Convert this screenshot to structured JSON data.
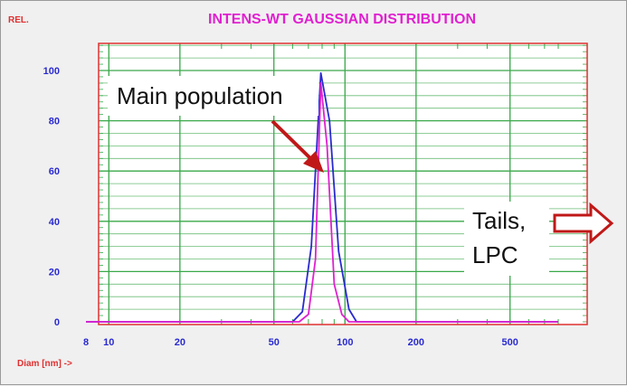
{
  "chart_data": {
    "type": "line",
    "title": "INTENS-WT GAUSSIAN DISTRIBUTION",
    "ylabel": "REL.",
    "xlabel": "Diam [nm] ->",
    "x_scale": "log",
    "xlim": [
      8,
      800
    ],
    "ylim": [
      0,
      100
    ],
    "x_ticks": [
      "8",
      "10",
      "20",
      "50",
      "100",
      "200",
      "500"
    ],
    "y_ticks": [
      "0",
      "20",
      "40",
      "60",
      "80",
      "100"
    ],
    "grid": true,
    "series": [
      {
        "color": "#2a2ad0",
        "x": [
          8,
          60,
          66,
          72,
          79,
          86,
          94,
          104,
          112,
          800
        ],
        "y": [
          0,
          0,
          4,
          30,
          99,
          80,
          28,
          5,
          0,
          0
        ]
      },
      {
        "color": "#e020d0",
        "x": [
          8,
          64,
          70,
          75,
          79,
          84,
          90,
          97,
          104,
          800
        ],
        "y": [
          0,
          0,
          3,
          25,
          95,
          70,
          15,
          3,
          0,
          0
        ]
      }
    ],
    "annotations": [
      {
        "text": "Main population"
      },
      {
        "text_line1": "Tails,",
        "text_line2": "LPC"
      }
    ]
  },
  "colors": {
    "title": "#e020d0",
    "axis_text": "#2a2ad0",
    "corner_text": "#e03030",
    "grid": "#3aa84a",
    "border": "#e03030",
    "arrow_red": "#c01818"
  }
}
